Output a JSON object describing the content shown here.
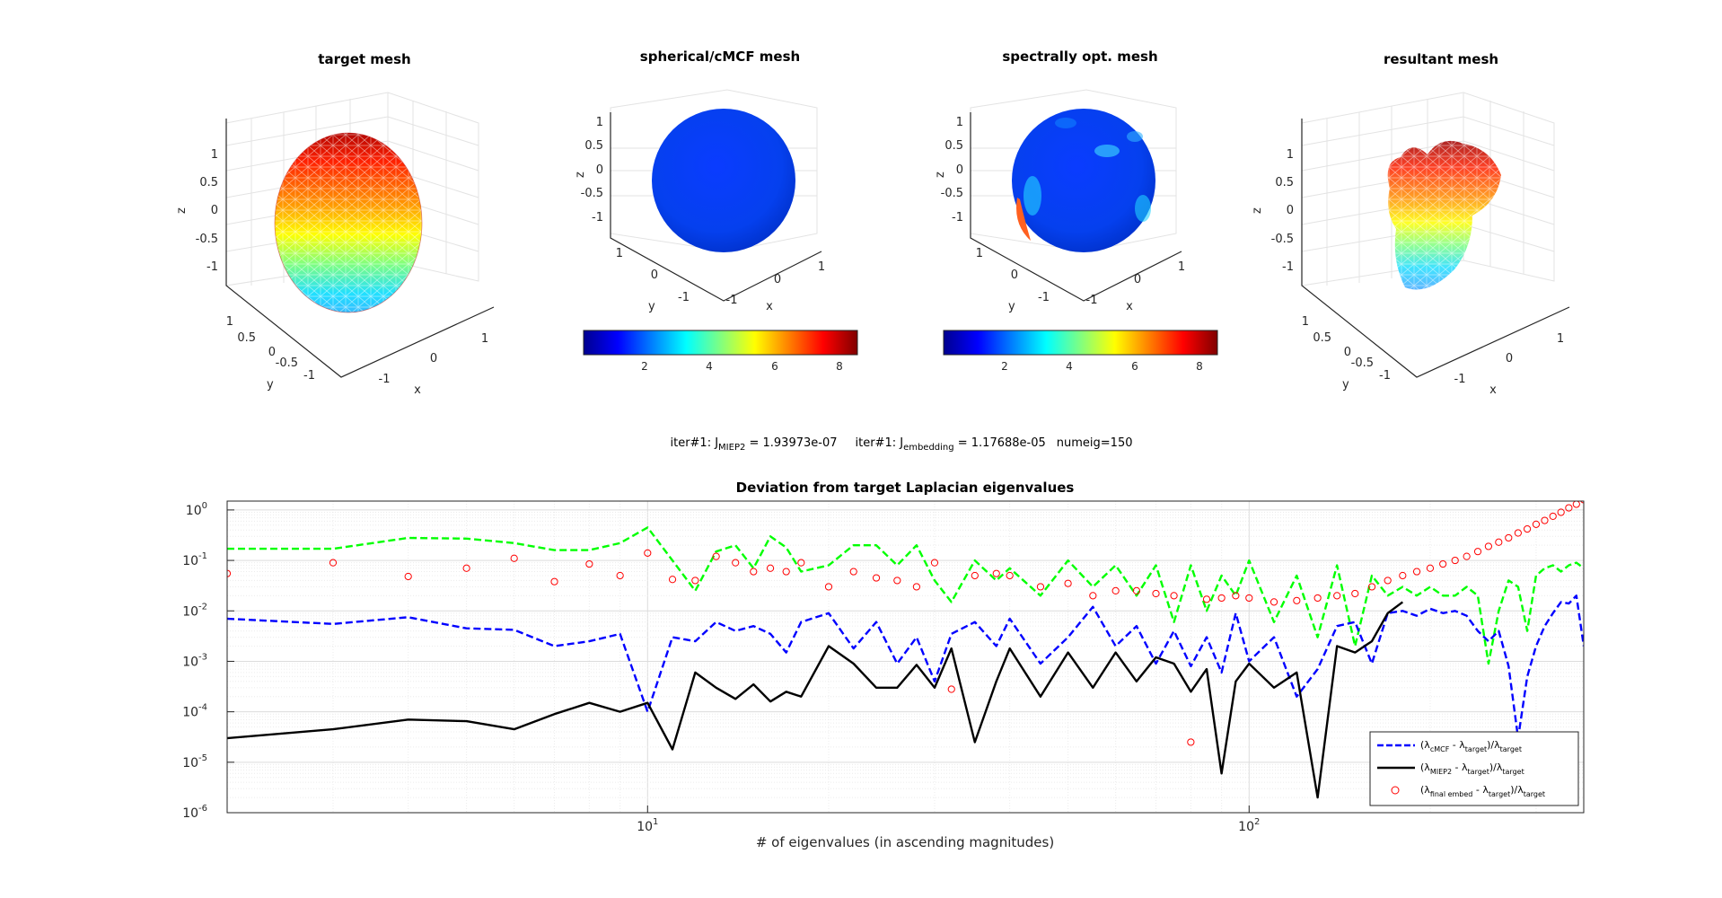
{
  "figure": {
    "panels": [
      {
        "title": "target mesh",
        "xlabel": "x",
        "ylabel": "y",
        "zlabel": "z",
        "zticks": [
          "1",
          "0.5",
          "0",
          "-0.5",
          "-1"
        ],
        "yticks": [
          "1",
          "0.5",
          "0",
          "-0.5",
          "-1"
        ],
        "xticks": [
          "-1",
          "0",
          "1"
        ]
      },
      {
        "title": "spherical/cMCF mesh",
        "xlabel": "x",
        "ylabel": "y",
        "zlabel": "z",
        "zticks": [
          "1",
          "0.5",
          "0",
          "-0.5",
          "-1"
        ],
        "yticks": [
          "1",
          "0",
          "-1"
        ],
        "xticks": [
          "-1",
          "0",
          "1"
        ]
      },
      {
        "title": "spectrally opt. mesh",
        "xlabel": "x",
        "ylabel": "y",
        "zlabel": "z",
        "zticks": [
          "1",
          "0.5",
          "0",
          "-0.5",
          "-1"
        ],
        "yticks": [
          "1",
          "0",
          "-1"
        ],
        "xticks": [
          "-1",
          "0",
          "1"
        ]
      },
      {
        "title": "resultant mesh",
        "xlabel": "x",
        "ylabel": "y",
        "zlabel": "z",
        "zticks": [
          "1",
          "0.5",
          "0",
          "-0.5",
          "-1"
        ],
        "yticks": [
          "1",
          "0.5",
          "0",
          "-0.5",
          "-1"
        ],
        "xticks": [
          "-1",
          "0",
          "1"
        ]
      }
    ],
    "colorbar_ticks": [
      "2",
      "4",
      "6",
      "8"
    ],
    "annotation": {
      "p1_prefix": "iter#1: J",
      "p1_sub": "MIEP2",
      "p1_value": " = 1.93973e-07",
      "p2_prefix": "iter#1: J",
      "p2_sub": "embedding",
      "p2_value": " = 1.17688e-05",
      "p3": "numeig=150"
    }
  },
  "chart_data": {
    "type": "line",
    "title": "Deviation from target Laplacian eigenvalues",
    "xlabel": "# of eigenvalues (in ascending magnitudes)",
    "ylabel": "",
    "xscale": "log",
    "yscale": "log",
    "xlim": [
      2,
      360
    ],
    "ylim": [
      1e-06,
      1.5
    ],
    "grid": "major and minor",
    "legend_position": "bottom-right",
    "x_ticks": [
      {
        "value": 10,
        "base": "10",
        "exp": "1"
      },
      {
        "value": 100,
        "base": "10",
        "exp": "2"
      }
    ],
    "y_ticks": [
      {
        "value": 1,
        "base": "10",
        "exp": "0"
      },
      {
        "value": 0.1,
        "base": "10",
        "exp": "-1"
      },
      {
        "value": 0.01,
        "base": "10",
        "exp": "-2"
      },
      {
        "value": 0.001,
        "base": "10",
        "exp": "-3"
      },
      {
        "value": 0.0001,
        "base": "10",
        "exp": "-4"
      },
      {
        "value": 1e-05,
        "base": "10",
        "exp": "-5"
      },
      {
        "value": 1e-06,
        "base": "10",
        "exp": "-6"
      }
    ],
    "series": [
      {
        "label_parts": [
          [
            "(λ",
            ""
          ],
          [
            "cMCF",
            "sub"
          ],
          [
            " - λ",
            ""
          ],
          [
            "target",
            "sub"
          ],
          [
            ")/λ",
            ""
          ],
          [
            "target",
            "sub"
          ]
        ],
        "color": "#0000ff",
        "style": "dashed",
        "x": [
          2,
          3,
          4,
          5,
          6,
          7,
          8,
          9,
          10,
          11,
          12,
          13,
          14,
          15,
          16,
          17,
          18,
          20,
          22,
          24,
          26,
          28,
          30,
          32,
          35,
          38,
          40,
          45,
          50,
          55,
          60,
          65,
          70,
          75,
          80,
          85,
          90,
          95,
          100,
          110,
          120,
          130,
          140,
          150,
          160,
          170,
          180,
          190,
          200,
          210,
          220,
          230,
          240,
          250,
          260,
          270,
          280,
          290,
          300,
          310,
          320,
          330,
          340,
          350,
          360
        ],
        "y": [
          0.007,
          0.0055,
          0.0075,
          0.0045,
          0.0042,
          0.002,
          0.0025,
          0.0035,
          0.0001,
          0.003,
          0.0025,
          0.006,
          0.004,
          0.005,
          0.0035,
          0.0015,
          0.006,
          0.009,
          0.0018,
          0.006,
          0.0009,
          0.003,
          0.0004,
          0.0035,
          0.006,
          0.002,
          0.007,
          0.0009,
          0.003,
          0.012,
          0.002,
          0.005,
          0.0009,
          0.004,
          0.0008,
          0.003,
          0.0006,
          0.009,
          0.001,
          0.003,
          0.0002,
          0.0007,
          0.005,
          0.006,
          0.0009,
          0.009,
          0.01,
          0.008,
          0.011,
          0.009,
          0.01,
          0.008,
          0.004,
          0.0025,
          0.004,
          0.0008,
          3e-05,
          0.0005,
          0.002,
          0.005,
          0.009,
          0.015,
          0.014,
          0.02,
          0.002
        ]
      },
      {
        "label_parts": [
          [
            "(λ",
            ""
          ],
          [
            "MIEP2",
            "sub"
          ],
          [
            " - λ",
            ""
          ],
          [
            "target",
            "sub"
          ],
          [
            ")/λ",
            ""
          ],
          [
            "target",
            "sub"
          ]
        ],
        "color": "#000000",
        "style": "solid",
        "x": [
          2,
          3,
          4,
          5,
          6,
          7,
          8,
          9,
          10,
          11,
          12,
          13,
          14,
          15,
          16,
          17,
          18,
          20,
          22,
          24,
          26,
          28,
          30,
          32,
          35,
          38,
          40,
          45,
          50,
          55,
          60,
          65,
          70,
          75,
          80,
          85,
          90,
          95,
          100,
          110,
          120,
          130,
          140,
          150,
          160,
          170,
          180
        ],
        "y": [
          3e-05,
          4.5e-05,
          7e-05,
          6.5e-05,
          4.5e-05,
          9e-05,
          0.00015,
          0.0001,
          0.00015,
          1.8e-05,
          0.0006,
          0.0003,
          0.00018,
          0.00035,
          0.00016,
          0.00025,
          0.0002,
          0.002,
          0.0009,
          0.0003,
          0.0003,
          0.00085,
          0.0003,
          0.0018,
          2.5e-05,
          0.0004,
          0.0018,
          0.0002,
          0.0015,
          0.0003,
          0.0015,
          0.0004,
          0.0012,
          0.0009,
          0.00025,
          0.0007,
          6e-06,
          0.0004,
          0.0009,
          0.0003,
          0.0006,
          2e-06,
          0.002,
          0.0015,
          0.0025,
          0.009,
          0.015
        ]
      },
      {
        "label_parts": [
          [
            "(λ",
            ""
          ],
          [
            "final embed",
            "sub"
          ],
          [
            " - λ",
            ""
          ],
          [
            "target",
            "sub"
          ],
          [
            ")/λ",
            ""
          ],
          [
            "target",
            "sub"
          ]
        ],
        "color": "#ff0000",
        "style": "markers",
        "x": [
          2,
          3,
          4,
          5,
          6,
          7,
          8,
          9,
          10,
          11,
          12,
          13,
          14,
          15,
          16,
          17,
          18,
          20,
          22,
          24,
          26,
          28,
          30,
          32,
          35,
          38,
          40,
          45,
          50,
          55,
          60,
          65,
          70,
          75,
          80,
          85,
          90,
          95,
          100,
          110,
          120,
          130,
          140,
          150,
          160,
          170,
          180,
          190,
          200,
          210,
          220,
          230,
          240,
          250,
          260,
          270,
          280,
          290,
          300,
          310,
          320,
          330,
          340,
          350,
          360
        ],
        "y": [
          0.055,
          0.09,
          0.048,
          0.07,
          0.11,
          0.038,
          0.085,
          0.05,
          0.14,
          0.042,
          0.04,
          0.12,
          0.09,
          0.06,
          0.07,
          0.06,
          0.09,
          0.03,
          0.06,
          0.045,
          0.04,
          0.03,
          0.09,
          0.00028,
          0.05,
          0.055,
          0.05,
          0.03,
          0.035,
          0.02,
          0.025,
          0.025,
          0.022,
          0.02,
          2.5e-05,
          0.017,
          0.018,
          0.02,
          0.018,
          0.015,
          0.016,
          0.018,
          0.02,
          0.022,
          0.03,
          0.04,
          0.05,
          0.06,
          0.07,
          0.085,
          0.1,
          0.12,
          0.15,
          0.19,
          0.23,
          0.28,
          0.35,
          0.42,
          0.52,
          0.62,
          0.75,
          0.9,
          1.1,
          1.3,
          1.6
        ]
      },
      {
        "label_parts": [],
        "color": "#00ff00",
        "style": "dashed",
        "x": [
          2,
          3,
          4,
          5,
          6,
          7,
          8,
          9,
          10,
          11,
          12,
          13,
          14,
          15,
          16,
          17,
          18,
          20,
          22,
          24,
          26,
          28,
          30,
          32,
          35,
          38,
          40,
          45,
          50,
          55,
          60,
          65,
          70,
          75,
          80,
          85,
          90,
          95,
          100,
          110,
          120,
          130,
          140,
          150,
          160,
          170,
          180,
          190,
          200,
          210,
          220,
          230,
          240,
          250,
          260,
          270,
          280,
          290,
          300,
          310,
          320,
          330,
          340,
          350,
          360
        ],
        "y": [
          0.17,
          0.17,
          0.28,
          0.27,
          0.22,
          0.16,
          0.16,
          0.22,
          0.45,
          0.1,
          0.025,
          0.15,
          0.2,
          0.07,
          0.3,
          0.18,
          0.06,
          0.08,
          0.2,
          0.2,
          0.08,
          0.2,
          0.04,
          0.015,
          0.1,
          0.04,
          0.07,
          0.02,
          0.1,
          0.03,
          0.08,
          0.02,
          0.08,
          0.006,
          0.08,
          0.01,
          0.05,
          0.02,
          0.1,
          0.006,
          0.05,
          0.003,
          0.08,
          0.002,
          0.05,
          0.02,
          0.03,
          0.02,
          0.03,
          0.02,
          0.02,
          0.03,
          0.02,
          0.0009,
          0.01,
          0.04,
          0.03,
          0.004,
          0.05,
          0.07,
          0.08,
          0.06,
          0.08,
          0.09,
          0.07
        ]
      }
    ]
  }
}
